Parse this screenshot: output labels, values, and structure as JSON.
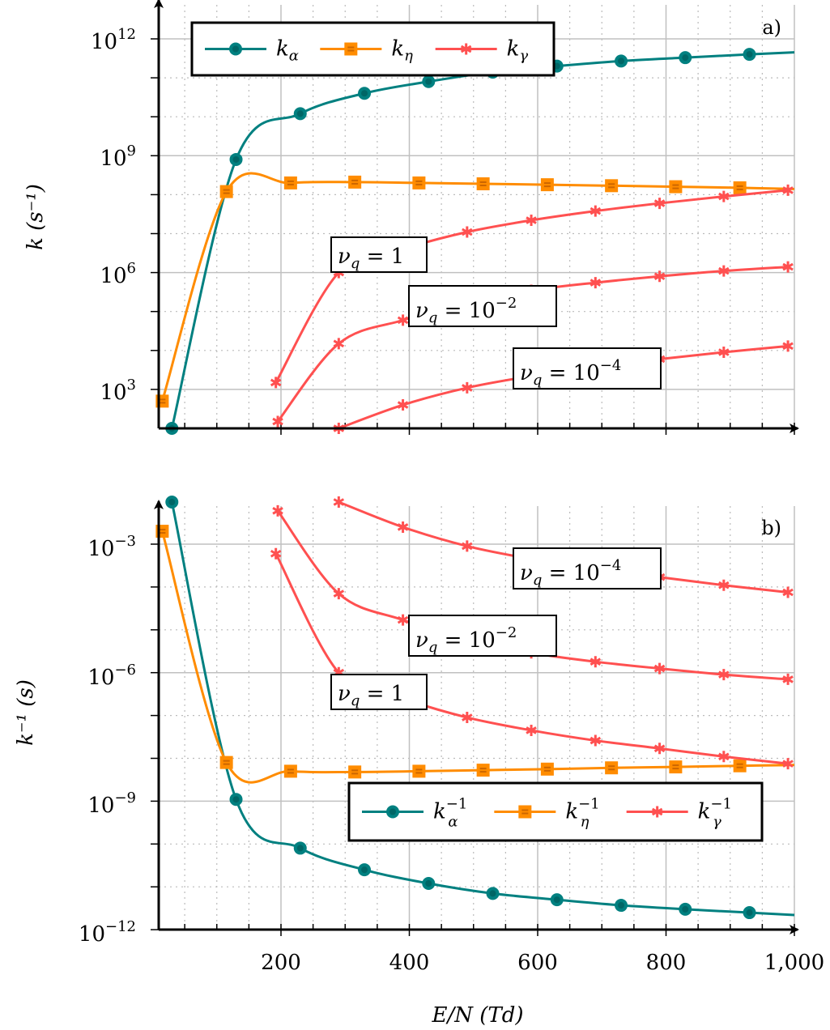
{
  "figure": {
    "panel_a": {
      "tag": "a)",
      "ylabel": "k (s⁻¹)",
      "yticks": [
        "10^3",
        "10^6",
        "10^9",
        "10^12"
      ],
      "legend": [
        "k_α",
        "k_η",
        "k_γ"
      ],
      "annotations": [
        "ν_q = 1",
        "ν_q = 10^-2",
        "ν_q = 10^-4"
      ]
    },
    "panel_b": {
      "tag": "b)",
      "ylabel": "k⁻¹ (s)",
      "yticks": [
        "10^-12",
        "10^-9",
        "10^-6",
        "10^-3"
      ],
      "legend": [
        "k_α^-1",
        "k_η^-1",
        "k_γ^-1"
      ],
      "annotations": [
        "ν_q = 10^-4",
        "ν_q = 10^-2",
        "ν_q = 1"
      ]
    },
    "xlabel": "E/N (Td)",
    "xticks": [
      "200",
      "400",
      "600",
      "800",
      "1,000"
    ]
  },
  "colors": {
    "k_alpha": "#008080",
    "k_eta": "#ff8c00",
    "k_gamma": "#ff5050",
    "grid_major": "#c0c0c0",
    "grid_minor": "#b8b8b8"
  },
  "chart_data": [
    {
      "type": "line",
      "title": "a)",
      "xlabel": "E/N (Td)",
      "ylabel": "k (s^-1)",
      "yscale": "log",
      "xlim": [
        10,
        1000
      ],
      "ylim": [
        100,
        10000000000000.0
      ],
      "grid": true,
      "legend_position": "upper left",
      "series": [
        {
          "name": "k_alpha",
          "x": [
            30,
            130,
            230,
            330,
            430,
            530,
            630,
            730,
            830,
            930,
            1000
          ],
          "y": [
            100,
            800000000.0,
            12000000000.0,
            40000000000.0,
            80000000000.0,
            140000000000.0,
            200000000000.0,
            270000000000.0,
            330000000000.0,
            400000000000.0,
            450000000000.0
          ]
        },
        {
          "name": "k_eta",
          "x": [
            15,
            115,
            215,
            315,
            415,
            515,
            615,
            715,
            815,
            915,
            1000
          ],
          "y": [
            500,
            120000000.0,
            200000000.0,
            210000000.0,
            200000000.0,
            190000000.0,
            180000000.0,
            170000000.0,
            160000000.0,
            150000000.0,
            140000000.0
          ]
        },
        {
          "name": "k_gamma (nu_q=1)",
          "x": [
            192,
            290,
            390,
            490,
            590,
            690,
            790,
            890,
            990
          ],
          "y": [
            1500,
            1000000.0,
            4000000.0,
            11000000.0,
            22000000.0,
            38000000.0,
            60000000.0,
            90000000.0,
            130000000.0
          ]
        },
        {
          "name": "k_gamma (nu_q=1e-2)",
          "x": [
            195,
            290,
            390,
            490,
            590,
            690,
            790,
            890,
            990
          ],
          "y": [
            150,
            15000.0,
            60000.0,
            170000.0,
            350000.0,
            550000.0,
            800000.0,
            1100000.0,
            1400000.0
          ]
        },
        {
          "name": "k_gamma (nu_q=1e-4)",
          "x": [
            290,
            390,
            490,
            590,
            690,
            790,
            890,
            990
          ],
          "y": [
            100,
            400,
            1100,
            2200,
            3800,
            6000,
            9000,
            13000.0
          ]
        }
      ]
    },
    {
      "type": "line",
      "title": "b)",
      "xlabel": "E/N (Td)",
      "ylabel": "k^-1 (s)",
      "yscale": "log",
      "xlim": [
        10,
        1000
      ],
      "ylim": [
        1e-12,
        0.03
      ],
      "grid": true,
      "legend_position": "lower right",
      "series": [
        {
          "name": "k_alpha^-1",
          "x": [
            30,
            130,
            230,
            330,
            430,
            530,
            630,
            730,
            830,
            930,
            1000
          ],
          "y": [
            0.01,
            1.1e-09,
            8e-11,
            2.5e-11,
            1.2e-11,
            7e-12,
            5e-12,
            3.7e-12,
            3e-12,
            2.5e-12,
            2.2e-12
          ]
        },
        {
          "name": "k_eta^-1",
          "x": [
            15,
            115,
            215,
            315,
            415,
            515,
            615,
            715,
            815,
            915,
            1000
          ],
          "y": [
            0.002,
            8e-09,
            5e-09,
            4.8e-09,
            5e-09,
            5.3e-09,
            5.6e-09,
            6e-09,
            6.3e-09,
            6.7e-09,
            7e-09
          ]
        },
        {
          "name": "k_gamma^-1 (nu_q=1)",
          "x": [
            192,
            290,
            390,
            490,
            590,
            690,
            790,
            890,
            990
          ],
          "y": [
            0.0006,
            1e-06,
            2.5e-07,
            9e-08,
            4.5e-08,
            2.6e-08,
            1.7e-08,
            1.1e-08,
            7.5e-09
          ]
        },
        {
          "name": "k_gamma^-1 (nu_q=1e-2)",
          "x": [
            195,
            290,
            390,
            490,
            590,
            690,
            790,
            890,
            990
          ],
          "y": [
            0.006,
            7e-05,
            1.7e-05,
            6e-06,
            2.9e-06,
            1.8e-06,
            1.25e-06,
            9e-07,
            7e-07
          ]
        },
        {
          "name": "k_gamma^-1 (nu_q=1e-4)",
          "x": [
            290,
            390,
            490,
            590,
            690,
            790,
            890,
            990
          ],
          "y": [
            0.01,
            0.0025,
            0.0009,
            0.00045,
            0.00026,
            0.00017,
            0.00011,
            7.5e-05
          ]
        }
      ]
    }
  ]
}
